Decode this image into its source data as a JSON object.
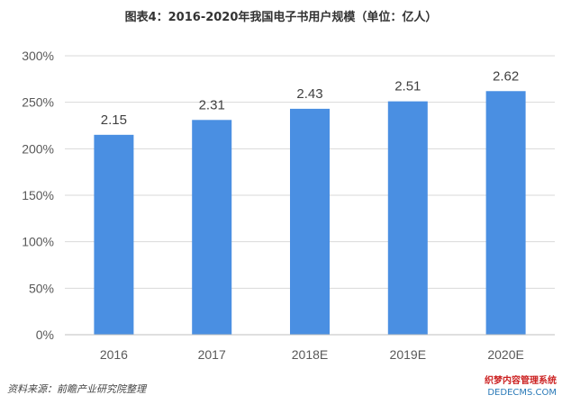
{
  "chart_data": {
    "type": "bar",
    "title": "图表4：2016-2020年我国电子书用户规模（单位：亿人）",
    "categories": [
      "2016",
      "2017",
      "2018E",
      "2019E",
      "2020E"
    ],
    "values": [
      2.15,
      2.31,
      2.43,
      2.51,
      2.62
    ],
    "data_labels": [
      "2.15",
      "2.31",
      "2.43",
      "2.51",
      "2.62"
    ],
    "yticks": [
      "0%",
      "50%",
      "100%",
      "150%",
      "200%",
      "250%",
      "300%"
    ],
    "ylim": [
      0,
      3
    ],
    "bar_color": "#4a8fe2",
    "grid": true,
    "legend": "none"
  },
  "source_note": "资料来源：前瞻产业研究院整理",
  "watermark": {
    "line1": "织梦内容管理系统",
    "line2": "DEDECMS.COM"
  }
}
